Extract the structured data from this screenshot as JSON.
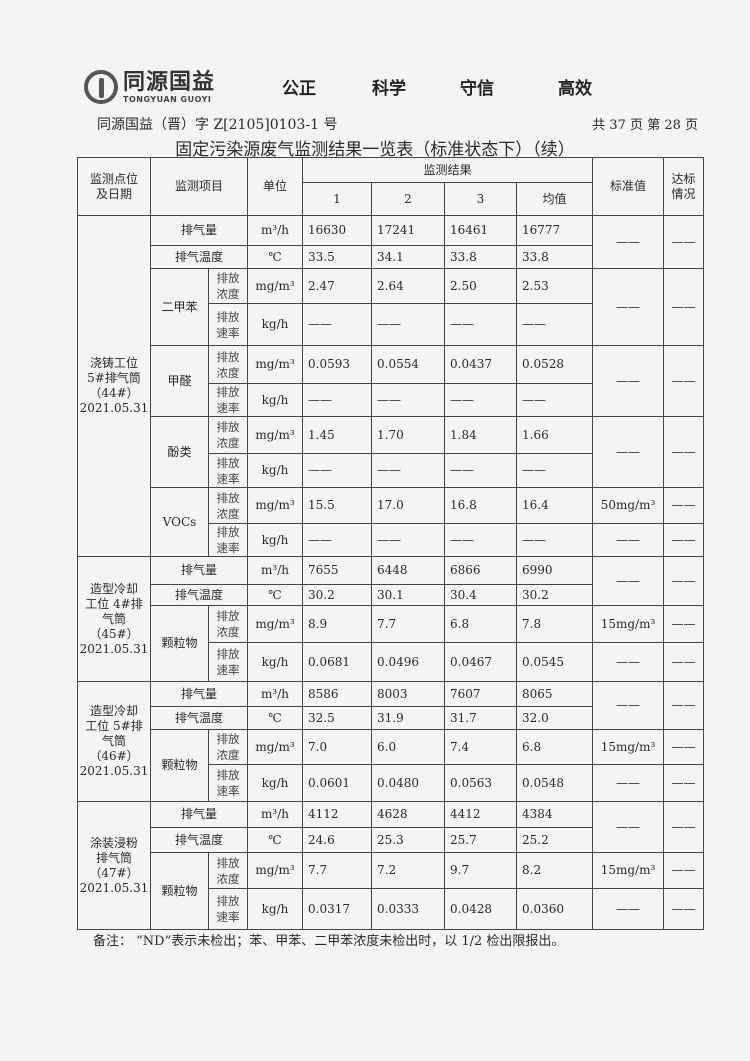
{
  "header": {
    "logo_cn": "同源国益",
    "logo_en": "TONGYUAN GUOYI",
    "slogans": [
      "公正",
      "科学",
      "守信",
      "高效"
    ],
    "doc_number": "同源国益（晋）字 Z[2105]0103-1 号",
    "page_info": "共 37 页  第 28 页",
    "title": "固定污染源废气监测结果一览表（标准状态下）（续）"
  },
  "table": {
    "headers": {
      "station": "监测点位\n及日期",
      "item": "监测项目",
      "unit": "单位",
      "results": "监测结果",
      "runs": [
        "1",
        "2",
        "3",
        "均值"
      ],
      "standard": "标准值",
      "compliance": "达标\n情况"
    },
    "groups": [
      {
        "station": "浇铸工位\n5#排气筒\n（44#）\n2021.05.31",
        "rows": [
          {
            "item": "排气量",
            "sub": "",
            "unit": "m³/h",
            "values": [
              "16630",
              "17241",
              "16461",
              "16777"
            ],
            "std": "——",
            "pass": "——"
          },
          {
            "item": "排气温度",
            "sub": "",
            "unit": "℃",
            "values": [
              "33.5",
              "34.1",
              "33.8",
              "33.8"
            ],
            "std": null,
            "pass": null
          },
          {
            "item": "二甲苯",
            "sub": "排放\n浓度",
            "unit": "mg/m³",
            "values": [
              "2.47",
              "2.64",
              "2.50",
              "2.53"
            ],
            "std": "——",
            "pass": "——"
          },
          {
            "item": null,
            "sub": "排放\n速率",
            "unit": "kg/h",
            "values": [
              "——",
              "——",
              "——",
              "——"
            ],
            "std": null,
            "pass": null
          },
          {
            "item": "甲醛",
            "sub": "排放\n浓度",
            "unit": "mg/m³",
            "values": [
              "0.0593",
              "0.0554",
              "0.0437",
              "0.0528"
            ],
            "std": "——",
            "pass": "——"
          },
          {
            "item": null,
            "sub": "排放\n速率",
            "unit": "kg/h",
            "values": [
              "——",
              "——",
              "——",
              "——"
            ],
            "std": null,
            "pass": null
          },
          {
            "item": "酚类",
            "sub": "排放\n浓度",
            "unit": "mg/m³",
            "values": [
              "1.45",
              "1.70",
              "1.84",
              "1.66"
            ],
            "std": "——",
            "pass": "——"
          },
          {
            "item": null,
            "sub": "排放\n速率",
            "unit": "kg/h",
            "values": [
              "——",
              "——",
              "——",
              "——"
            ],
            "std": null,
            "pass": null
          },
          {
            "item": "VOCs",
            "sub": "排放\n浓度",
            "unit": "mg/m³",
            "values": [
              "15.5",
              "17.0",
              "16.8",
              "16.4"
            ],
            "std": "50mg/m³",
            "pass": "——"
          },
          {
            "item": null,
            "sub": "排放\n速率",
            "unit": "kg/h",
            "values": [
              "——",
              "——",
              "——",
              "——"
            ],
            "std": "——",
            "pass": "——"
          }
        ]
      },
      {
        "station": "造型冷却\n工位 4#排\n气筒（45#）\n2021.05.31",
        "rows": [
          {
            "item": "排气量",
            "sub": "",
            "unit": "m³/h",
            "values": [
              "7655",
              "6448",
              "6866",
              "6990"
            ],
            "std": "——",
            "pass": "——"
          },
          {
            "item": "排气温度",
            "sub": "",
            "unit": "℃",
            "values": [
              "30.2",
              "30.1",
              "30.4",
              "30.2"
            ],
            "std": null,
            "pass": null
          },
          {
            "item": "颗粒物",
            "sub": "排放\n浓度",
            "unit": "mg/m³",
            "values": [
              "8.9",
              "7.7",
              "6.8",
              "7.8"
            ],
            "std": "15mg/m³",
            "pass": "——"
          },
          {
            "item": null,
            "sub": "排放\n速率",
            "unit": "kg/h",
            "values": [
              "0.0681",
              "0.0496",
              "0.0467",
              "0.0545"
            ],
            "std": "——",
            "pass": "——"
          }
        ]
      },
      {
        "station": "造型冷却\n工位 5#排\n气筒（46#）\n2021.05.31",
        "rows": [
          {
            "item": "排气量",
            "sub": "",
            "unit": "m³/h",
            "values": [
              "8586",
              "8003",
              "7607",
              "8065"
            ],
            "std": "——",
            "pass": "——"
          },
          {
            "item": "排气温度",
            "sub": "",
            "unit": "℃",
            "values": [
              "32.5",
              "31.9",
              "31.7",
              "32.0"
            ],
            "std": null,
            "pass": null
          },
          {
            "item": "颗粒物",
            "sub": "排放\n浓度",
            "unit": "mg/m³",
            "values": [
              "7.0",
              "6.0",
              "7.4",
              "6.8"
            ],
            "std": "15mg/m³",
            "pass": "——"
          },
          {
            "item": null,
            "sub": "排放\n速率",
            "unit": "kg/h",
            "values": [
              "0.0601",
              "0.0480",
              "0.0563",
              "0.0548"
            ],
            "std": "——",
            "pass": "——"
          }
        ]
      },
      {
        "station": "涂装浸粉\n排气筒\n（47#）\n2021.05.31",
        "rows": [
          {
            "item": "排气量",
            "sub": "",
            "unit": "m³/h",
            "values": [
              "4112",
              "4628",
              "4412",
              "4384"
            ],
            "std": "——",
            "pass": "——"
          },
          {
            "item": "排气温度",
            "sub": "",
            "unit": "℃",
            "values": [
              "24.6",
              "25.3",
              "25.7",
              "25.2"
            ],
            "std": null,
            "pass": null
          },
          {
            "item": "颗粒物",
            "sub": "排放\n浓度",
            "unit": "mg/m³",
            "values": [
              "7.7",
              "7.2",
              "9.7",
              "8.2"
            ],
            "std": "15mg/m³",
            "pass": "——"
          },
          {
            "item": null,
            "sub": "排放\n速率",
            "unit": "kg/h",
            "values": [
              "0.0317",
              "0.0333",
              "0.0428",
              "0.0360"
            ],
            "std": "——",
            "pass": "——"
          }
        ]
      }
    ]
  },
  "note": "备注：  “ND”表示未检出；苯、甲苯、二甲苯浓度未检出时，以 1/2 检出限报出。"
}
